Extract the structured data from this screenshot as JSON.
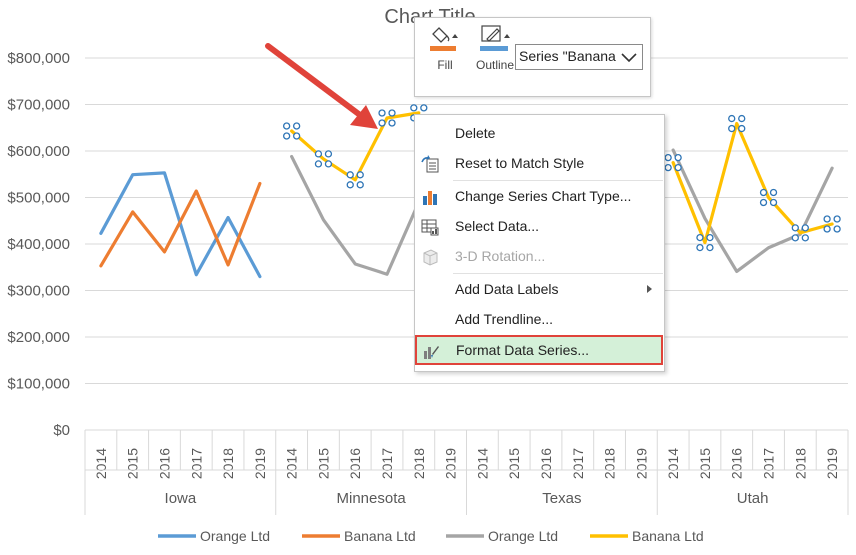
{
  "chart_data": {
    "type": "line",
    "title": "Chart Title",
    "y_tick_labels": [
      "$800,000",
      "$700,000",
      "$600,000",
      "$500,000",
      "$400,000",
      "$300,000",
      "$200,000",
      "$100,000",
      "$0"
    ],
    "ylim": [
      0,
      800000
    ],
    "groups": [
      "Iowa",
      "Minnesota",
      "Texas",
      "Utah"
    ],
    "years": [
      "2014",
      "2015",
      "2016",
      "2017",
      "2018",
      "2019"
    ],
    "legend_position": "bottom",
    "grid": true,
    "series": [
      {
        "name": "Orange Ltd",
        "group": "Iowa",
        "color": "#5b9bd5",
        "values": [
          423000,
          549000,
          553000,
          334000,
          457000,
          330000
        ]
      },
      {
        "name": "Banana Ltd",
        "group": "Iowa",
        "color": "#ed7d31",
        "values": [
          353000,
          469000,
          383000,
          514000,
          355000,
          530000
        ]
      },
      {
        "name": "Orange Ltd",
        "group": "Minnesota",
        "color": "#a5a5a5",
        "values": [
          588000,
          452000,
          357000,
          335000,
          490000,
          null
        ]
      },
      {
        "name": "Banana Ltd",
        "group": "Minnesota",
        "color": "#ffc000",
        "selected": true,
        "values": [
          643000,
          583000,
          538000,
          671000,
          682000,
          null
        ]
      },
      {
        "name": "Orange Ltd",
        "group": "Utah",
        "color": "#a5a5a5",
        "values": [
          602000,
          455000,
          341000,
          392000,
          421000,
          563000
        ]
      },
      {
        "name": "Banana Ltd",
        "group": "Utah",
        "color": "#ffc000",
        "selected": true,
        "values": [
          575000,
          403000,
          659000,
          500000,
          424000,
          443000
        ]
      }
    ],
    "legend": [
      {
        "name": "Orange Ltd",
        "color": "#5b9bd5"
      },
      {
        "name": "Banana Ltd",
        "color": "#ed7d31"
      },
      {
        "name": "Orange Ltd",
        "color": "#a5a5a5"
      },
      {
        "name": "Banana Ltd",
        "color": "#ffc000"
      }
    ]
  },
  "toolbar": {
    "fill_label": "Fill",
    "outline_label": "Outline",
    "series_selector": "Series \"Banana",
    "fill_color": "#ed7d31",
    "outline_color": "#5b9bd5"
  },
  "context_menu": {
    "items": [
      {
        "label": "Delete",
        "icon": "none",
        "disabled": false
      },
      {
        "label": "Reset to Match Style",
        "icon": "reset-style-icon",
        "disabled": false
      },
      {
        "label": "Change Series Chart Type...",
        "icon": "chart-type-icon",
        "disabled": false
      },
      {
        "label": "Select Data...",
        "icon": "select-data-icon",
        "disabled": false
      },
      {
        "label": "3-D Rotation...",
        "icon": "rotation-3d-icon",
        "disabled": true
      },
      {
        "label": "Add Data Labels",
        "icon": "none",
        "disabled": false,
        "submenu": true
      },
      {
        "label": "Add Trendline...",
        "icon": "none",
        "disabled": false
      },
      {
        "label": "Format Data Series...",
        "icon": "format-series-icon",
        "disabled": false,
        "highlighted": true
      }
    ]
  },
  "annotation": {
    "arrow_color": "#e0433a"
  }
}
